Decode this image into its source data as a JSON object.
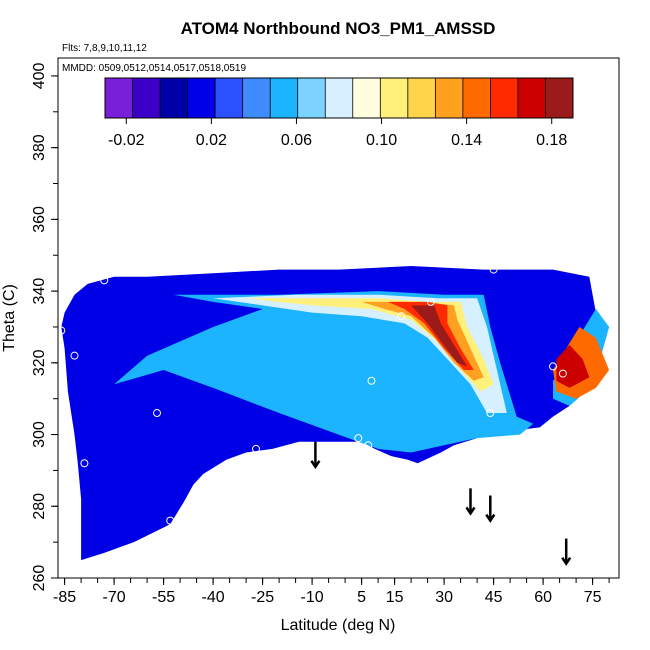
{
  "chart_data": {
    "type": "heatmap",
    "title": "ATOM4 Northbound NO3_PM1_AMSSD",
    "subtitle_flights": "Flts: 7,8,9,10,11,12",
    "subtitle_dates": "MMDD: 0509,0512,0514,0517,0518,0519",
    "xlabel": "Latitude (deg N)",
    "ylabel": "Theta (C)",
    "xlim": [
      -87,
      83
    ],
    "ylim": [
      260,
      405
    ],
    "x_ticks": [
      "-85",
      "-70",
      "-55",
      "-40",
      "-25",
      "-10",
      "5",
      "15",
      "30",
      "45",
      "60",
      "75"
    ],
    "x_tick_values": [
      -85,
      -70,
      -55,
      -40,
      -25,
      -10,
      5,
      15,
      30,
      45,
      60,
      75
    ],
    "y_ticks": [
      "260",
      "280",
      "300",
      "320",
      "340",
      "360",
      "380",
      "400"
    ],
    "y_tick_values": [
      260,
      280,
      300,
      320,
      340,
      360,
      380,
      400
    ],
    "grid": false,
    "colorbar": {
      "range": [
        -0.03,
        0.19
      ],
      "tick_labels": [
        "-0.02",
        "0.02",
        "0.06",
        "0.10",
        "0.14",
        "0.18"
      ],
      "tick_values": [
        -0.02,
        0.02,
        0.06,
        0.1,
        0.14,
        0.18
      ],
      "colors": [
        "#7a1fd9",
        "#3b00c8",
        "#0000a8",
        "#0000e6",
        "#2a50ff",
        "#3f8cff",
        "#1cb3ff",
        "#7dd3ff",
        "#d7f0ff",
        "#ffffe0",
        "#fff07a",
        "#ffd34a",
        "#ffa020",
        "#ff6a00",
        "#ff2a00",
        "#cc0000",
        "#9b1b1b"
      ]
    },
    "field_regions": [
      {
        "kind": "background",
        "value": 0.01,
        "polygon": [
          [
            -86,
            330
          ],
          [
            -85,
            324
          ],
          [
            -84,
            312
          ],
          [
            -82,
            300
          ],
          [
            -81,
            292
          ],
          [
            -80,
            282
          ],
          [
            -80,
            265
          ],
          [
            -73,
            267
          ],
          [
            -64,
            270
          ],
          [
            -53,
            275
          ],
          [
            -49,
            281
          ],
          [
            -46,
            286
          ],
          [
            -43,
            289
          ],
          [
            -36,
            293
          ],
          [
            -30,
            295
          ],
          [
            -22,
            296
          ],
          [
            -14,
            298
          ],
          [
            -8,
            298
          ],
          [
            1,
            298
          ],
          [
            5,
            298
          ],
          [
            9,
            296
          ],
          [
            14,
            294
          ],
          [
            19,
            293
          ],
          [
            22,
            292
          ],
          [
            29,
            295
          ],
          [
            33,
            297
          ],
          [
            40,
            299
          ],
          [
            50,
            301
          ],
          [
            59,
            302
          ],
          [
            63,
            305
          ],
          [
            68,
            308
          ],
          [
            75,
            318
          ],
          [
            80,
            330
          ],
          [
            76,
            334
          ],
          [
            74,
            344
          ],
          [
            63,
            346
          ],
          [
            42,
            346
          ],
          [
            20,
            347
          ],
          [
            -2,
            346
          ],
          [
            -20,
            346
          ],
          [
            -40,
            345
          ],
          [
            -60,
            344
          ],
          [
            -70,
            344
          ],
          [
            -78,
            342
          ],
          [
            -82,
            339
          ],
          [
            -85,
            334
          ]
        ]
      },
      {
        "kind": "band",
        "value": 0.05,
        "polygon": [
          [
            -52,
            339
          ],
          [
            -20,
            339
          ],
          [
            10,
            340
          ],
          [
            30,
            339
          ],
          [
            42,
            339
          ],
          [
            44,
            330
          ],
          [
            47,
            320
          ],
          [
            52,
            305
          ],
          [
            57,
            303
          ],
          [
            53,
            300
          ],
          [
            40,
            299
          ],
          [
            30,
            297
          ],
          [
            20,
            295
          ],
          [
            10,
            296
          ],
          [
            -2,
            300
          ],
          [
            -20,
            306
          ],
          [
            -40,
            313
          ],
          [
            -55,
            318
          ],
          [
            -70,
            314
          ],
          [
            -60,
            322
          ],
          [
            -40,
            330
          ],
          [
            -25,
            335
          ],
          [
            -40,
            337
          ]
        ]
      },
      {
        "kind": "band",
        "value": 0.08,
        "polygon": [
          [
            -40,
            338
          ],
          [
            -15,
            339
          ],
          [
            10,
            339
          ],
          [
            28,
            338
          ],
          [
            40,
            338
          ],
          [
            43,
            330
          ],
          [
            46,
            318
          ],
          [
            49,
            306
          ],
          [
            43,
            306
          ],
          [
            38,
            314
          ],
          [
            32,
            320
          ],
          [
            25,
            327
          ],
          [
            18,
            331
          ],
          [
            5,
            333
          ],
          [
            -10,
            334
          ],
          [
            -25,
            336
          ]
        ]
      },
      {
        "kind": "band",
        "value": 0.1,
        "polygon": [
          [
            -30,
            338
          ],
          [
            -10,
            338
          ],
          [
            10,
            338
          ],
          [
            25,
            337
          ],
          [
            35,
            337
          ],
          [
            37,
            330
          ],
          [
            42,
            321
          ],
          [
            45,
            314
          ],
          [
            41,
            312
          ],
          [
            35,
            318
          ],
          [
            28,
            326
          ],
          [
            20,
            332
          ],
          [
            8,
            335
          ],
          [
            -10,
            336
          ]
        ]
      },
      {
        "kind": "band",
        "value": 0.13,
        "polygon": [
          [
            5,
            337
          ],
          [
            24,
            337
          ],
          [
            33,
            336
          ],
          [
            34,
            332
          ],
          [
            38,
            324
          ],
          [
            42,
            316
          ],
          [
            39,
            315
          ],
          [
            33,
            320
          ],
          [
            27,
            327
          ],
          [
            20,
            333
          ],
          [
            12,
            335
          ]
        ]
      },
      {
        "kind": "band",
        "value": 0.16,
        "polygon": [
          [
            13,
            337
          ],
          [
            25,
            337
          ],
          [
            31,
            336
          ],
          [
            31,
            331
          ],
          [
            35,
            324
          ],
          [
            39,
            318
          ],
          [
            36,
            318
          ],
          [
            30,
            324
          ],
          [
            24,
            331
          ],
          [
            18,
            335
          ]
        ]
      },
      {
        "kind": "band",
        "value": 0.18,
        "polygon": [
          [
            20,
            336
          ],
          [
            27,
            336
          ],
          [
            29,
            331
          ],
          [
            33,
            325
          ],
          [
            37,
            319
          ],
          [
            34,
            320
          ],
          [
            29,
            326
          ],
          [
            25,
            331
          ]
        ]
      },
      {
        "kind": "band",
        "value": 0.06,
        "polygon": [
          [
            63,
            315
          ],
          [
            66,
            318
          ],
          [
            70,
            326
          ],
          [
            76,
            335
          ],
          [
            80,
            330
          ],
          [
            77,
            320
          ],
          [
            73,
            312
          ],
          [
            68,
            308
          ],
          [
            63,
            310
          ]
        ]
      },
      {
        "kind": "band",
        "value": 0.14,
        "polygon": [
          [
            63,
            318
          ],
          [
            67,
            324
          ],
          [
            71,
            330
          ],
          [
            76,
            327
          ],
          [
            80,
            318
          ],
          [
            76,
            313
          ],
          [
            70,
            310
          ],
          [
            64,
            312
          ]
        ]
      },
      {
        "kind": "band",
        "value": 0.17,
        "polygon": [
          [
            64,
            321
          ],
          [
            68,
            325
          ],
          [
            72,
            321
          ],
          [
            74,
            316
          ],
          [
            68,
            313
          ],
          [
            64,
            315
          ]
        ]
      }
    ],
    "sample_points": [
      {
        "x": -86,
        "y": 329
      },
      {
        "x": -82,
        "y": 322
      },
      {
        "x": -73,
        "y": 343
      },
      {
        "x": -79,
        "y": 292
      },
      {
        "x": -57,
        "y": 306
      },
      {
        "x": -53,
        "y": 276
      },
      {
        "x": -27,
        "y": 296
      },
      {
        "x": 4,
        "y": 299
      },
      {
        "x": 7,
        "y": 297
      },
      {
        "x": 8,
        "y": 315
      },
      {
        "x": 17,
        "y": 333
      },
      {
        "x": 26,
        "y": 337
      },
      {
        "x": 44,
        "y": 306
      },
      {
        "x": 45,
        "y": 346
      },
      {
        "x": 63,
        "y": 319
      },
      {
        "x": 66,
        "y": 317
      }
    ],
    "arrows": [
      {
        "x": -9,
        "y_top": 298,
        "y_bottom": 291
      },
      {
        "x": 38,
        "y_top": 285,
        "y_bottom": 278
      },
      {
        "x": 44,
        "y_top": 283,
        "y_bottom": 276
      },
      {
        "x": 67,
        "y_top": 271,
        "y_bottom": 264
      }
    ]
  }
}
